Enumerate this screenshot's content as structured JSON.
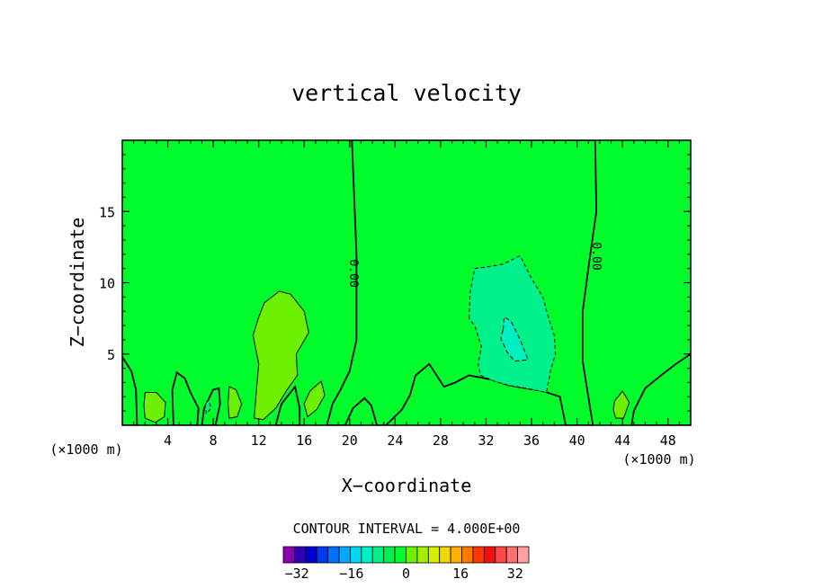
{
  "chart_data": {
    "type": "heatmap",
    "title": "vertical velocity",
    "xlabel": "X−coordinate",
    "ylabel": "Z−coordinate",
    "x_unit_left": "(×1000 m)",
    "x_unit_right": "(×1000 m)",
    "xlim": [
      0,
      50
    ],
    "ylim": [
      0,
      20
    ],
    "x_ticks": [
      4,
      8,
      12,
      16,
      20,
      24,
      28,
      32,
      36,
      40,
      44,
      48
    ],
    "y_ticks": [
      5,
      10,
      15
    ],
    "contour_labels": [
      "0.00",
      "0.00"
    ],
    "background_value": 0,
    "regions": [
      {
        "value": 4,
        "color": "#6cf200",
        "points": [
          [
            11.6,
            0.5
          ],
          [
            11.8,
            2.5
          ],
          [
            12,
            4.3
          ],
          [
            11.5,
            6.3
          ],
          [
            12,
            7.6
          ],
          [
            12.5,
            8.6
          ],
          [
            13.8,
            9.4
          ],
          [
            14.8,
            9.2
          ],
          [
            16,
            8.0
          ],
          [
            16.4,
            6.5
          ],
          [
            15.3,
            5
          ],
          [
            15.4,
            3.5
          ],
          [
            14.5,
            2.5
          ],
          [
            13.5,
            1.2
          ],
          [
            12.4,
            0.4
          ]
        ]
      },
      {
        "value": 4,
        "color": "#6cf200",
        "points": [
          [
            2,
            2.3
          ],
          [
            3,
            2.3
          ],
          [
            3.8,
            1.6
          ],
          [
            3.7,
            0.6
          ],
          [
            2.9,
            0.2
          ],
          [
            2,
            0.5
          ],
          [
            1.9,
            1.4
          ]
        ]
      },
      {
        "value": 4,
        "color": "#6cf200",
        "points": [
          [
            9.4,
            2.7
          ],
          [
            10,
            2.5
          ],
          [
            10.5,
            1.5
          ],
          [
            10.1,
            0.6
          ],
          [
            9.4,
            0.5
          ],
          [
            9.3,
            1.5
          ]
        ]
      },
      {
        "value": 4,
        "color": "#6cf200",
        "points": [
          [
            16.5,
            2.4
          ],
          [
            17.5,
            3.1
          ],
          [
            17.8,
            2.1
          ],
          [
            17.1,
            1.1
          ],
          [
            16.3,
            0.6
          ],
          [
            16,
            1.5
          ]
        ]
      },
      {
        "value": 4,
        "color": "#6cf200",
        "points": [
          [
            43.3,
            1.7
          ],
          [
            44,
            2.4
          ],
          [
            44.6,
            1.6
          ],
          [
            44.1,
            0.5
          ],
          [
            43.4,
            0.5
          ],
          [
            43.2,
            1.1
          ]
        ]
      },
      {
        "value": 0,
        "color": "#00fc2a",
        "points": [
          [
            0,
            4.8
          ],
          [
            0.8,
            3.8
          ],
          [
            1.2,
            2.5
          ],
          [
            1.3,
            0
          ],
          [
            0,
            0
          ]
        ]
      },
      {
        "value": 0,
        "color": "#00fc2a",
        "points": [
          [
            4.5,
            0
          ],
          [
            4.4,
            2.5
          ],
          [
            4.8,
            3.7
          ],
          [
            5.5,
            3.3
          ],
          [
            6,
            2.3
          ],
          [
            6.7,
            1.2
          ],
          [
            6.6,
            0
          ]
        ]
      },
      {
        "value": 0,
        "color": "#00fc2a",
        "points": [
          [
            7,
            0
          ],
          [
            7.2,
            1.2
          ],
          [
            8,
            2.5
          ],
          [
            8.5,
            2.6
          ],
          [
            8.6,
            1.5
          ],
          [
            8.2,
            0
          ]
        ]
      },
      {
        "value": 0,
        "color": "#00fc2a",
        "points": [
          [
            13.5,
            0
          ],
          [
            14,
            1.5
          ],
          [
            15.2,
            2.7
          ],
          [
            15.6,
            1.2
          ],
          [
            15.6,
            0
          ]
        ]
      },
      {
        "value": 0,
        "color": "#00fc2a",
        "points": [
          [
            18,
            0
          ],
          [
            18.5,
            1.5
          ],
          [
            19.2,
            2.5
          ],
          [
            20,
            3.8
          ],
          [
            20.6,
            6
          ],
          [
            20.6,
            12
          ],
          [
            20.2,
            20
          ],
          [
            41.6,
            20
          ],
          [
            41.7,
            15
          ],
          [
            41,
            11
          ],
          [
            40.5,
            8
          ],
          [
            40.5,
            4.5
          ],
          [
            41,
            2
          ],
          [
            41.4,
            0
          ],
          [
            39,
            0
          ],
          [
            38.5,
            2
          ],
          [
            37,
            2.4
          ],
          [
            34,
            2.8
          ],
          [
            32.5,
            3.2
          ],
          [
            30.5,
            3.5
          ],
          [
            29.3,
            3
          ],
          [
            28.3,
            2.7
          ],
          [
            27,
            4.3
          ],
          [
            25.8,
            3.5
          ],
          [
            25.3,
            2.1
          ],
          [
            24.6,
            1.1
          ],
          [
            23.2,
            0
          ],
          [
            22.4,
            0
          ],
          [
            21.9,
            1.4
          ],
          [
            21.3,
            1.9
          ],
          [
            20.3,
            1.2
          ],
          [
            19.6,
            0
          ]
        ]
      },
      {
        "value": 0,
        "color": "#00fc2a",
        "points": [
          [
            44.8,
            0
          ],
          [
            45,
            1
          ],
          [
            46,
            2.6
          ],
          [
            47.4,
            3.5
          ],
          [
            48.7,
            4.3
          ],
          [
            50,
            5
          ],
          [
            50,
            0
          ]
        ]
      },
      {
        "value": -4,
        "color": "#00f08a",
        "points": [
          [
            30.5,
            7.5
          ],
          [
            30.6,
            9.3
          ],
          [
            31,
            11
          ],
          [
            32,
            11.1
          ],
          [
            33.5,
            11.3
          ],
          [
            35,
            11.9
          ],
          [
            36,
            10.3
          ],
          [
            37,
            9
          ],
          [
            37.4,
            7.8
          ],
          [
            38,
            6.3
          ],
          [
            38.1,
            5
          ],
          [
            37.7,
            3.9
          ],
          [
            37.3,
            2.3
          ],
          [
            35.5,
            2.6
          ],
          [
            34,
            2.8
          ],
          [
            32.7,
            3.1
          ],
          [
            31.5,
            3.5
          ],
          [
            31.3,
            4.3
          ],
          [
            31.6,
            5.5
          ],
          [
            31,
            7
          ]
        ]
      },
      {
        "value": -8,
        "color": "#00f0c4",
        "points": [
          [
            33.5,
            6.7
          ],
          [
            33.6,
            7.6
          ],
          [
            34.2,
            7.3
          ],
          [
            35,
            6
          ],
          [
            35.7,
            4.6
          ],
          [
            34.5,
            4.5
          ],
          [
            33.8,
            5.2
          ],
          [
            33.3,
            6.1
          ]
        ]
      },
      {
        "value": -4,
        "color": "#00f08a",
        "points": [
          [
            7.4,
            0.8
          ],
          [
            7.3,
            1.4
          ],
          [
            7.6,
            1.8
          ],
          [
            7.8,
            1.2
          ]
        ]
      }
    ],
    "colorbar": {
      "min": -36,
      "max": 36,
      "step": 4,
      "tick_labels": [
        "−32",
        "−16",
        "0",
        "16",
        "32"
      ],
      "tick_values": [
        -32,
        -16,
        0,
        16,
        32
      ],
      "colors": [
        "#8b00b0",
        "#2f00b4",
        "#0000d4",
        "#0038f0",
        "#0070ff",
        "#00a8ff",
        "#00d8f0",
        "#00f0c4",
        "#00f08a",
        "#00f050",
        "#00fc2a",
        "#6cf200",
        "#a0f000",
        "#d4f000",
        "#f0d800",
        "#ffb000",
        "#ff7800",
        "#ff3800",
        "#f01010",
        "#ff4848",
        "#ff7070",
        "#ffa0a0"
      ]
    },
    "contour_interval": "CONTOUR INTERVAL = 4.000E+00"
  }
}
